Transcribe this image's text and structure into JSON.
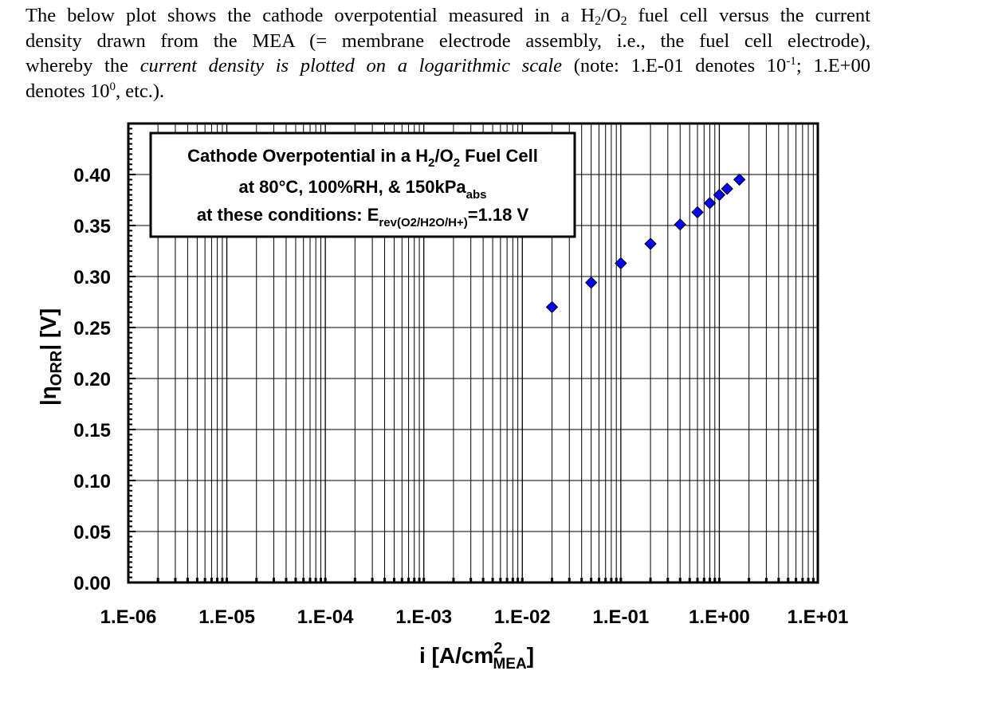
{
  "intro": {
    "l1_a": "The below plot shows the cathode overpotential measured in a H",
    "l1_sub1": "2",
    "l1_b": "/O",
    "l1_sub2": "2",
    "l1_c": " fuel cell versus the current",
    "l2": "density drawn from the MEA (= membrane electrode assembly, i.e., the fuel cell electrode),",
    "l3_a": "whereby the ",
    "l3_em": "current density is plotted on a logarithmic scale",
    "l3_b": " (note: 1.E-01 denotes 10",
    "l3_sup": "-1",
    "l3_c": "; 1.E+00",
    "l4_a": "denotes 10",
    "l4_sup": "0",
    "l4_b": ", etc.)."
  },
  "chart_data": {
    "type": "scatter",
    "x_scale": "log",
    "xlim": [
      1e-06,
      10
    ],
    "ylim": [
      0,
      0.45
    ],
    "x_ticks": [
      "1.E-06",
      "1.E-05",
      "1.E-04",
      "1.E-03",
      "1.E-02",
      "1.E-01",
      "1.E+00",
      "1.E+01"
    ],
    "y_ticks": [
      "0.00",
      "0.05",
      "0.10",
      "0.15",
      "0.20",
      "0.25",
      "0.30",
      "0.35",
      "0.40"
    ],
    "xlabel": {
      "main": "i [A/cm",
      "sup": "2",
      "sub": "MEA",
      "close": "]"
    },
    "ylabel": {
      "pre": "|η",
      "sub": "ORR",
      "post": "| [V]"
    },
    "grid": true,
    "marker": {
      "shape": "diamond",
      "color": "#0000ff",
      "stroke": "#000000"
    },
    "series": [
      {
        "x": [
          0.02,
          0.05,
          0.1,
          0.2,
          0.4,
          0.6,
          0.8,
          1.0,
          1.2,
          1.6
        ],
        "y": [
          0.27,
          0.294,
          0.313,
          0.332,
          0.351,
          0.363,
          0.372,
          0.38,
          0.386,
          0.395
        ]
      }
    ],
    "annotation": {
      "line1_a": "Cathode Overpotential in a H",
      "line1_sub1": "2",
      "line1_b": "/O",
      "line1_sub2": "2",
      "line1_c": " Fuel Cell",
      "line2_a": "at 80°C, 100%RH, & 150kPa",
      "line2_sub": "abs",
      "line3_a": "at these conditions: E",
      "line3_sub": "rev(O2/H2O/H+)",
      "line3_b": "=1.18 V"
    }
  }
}
